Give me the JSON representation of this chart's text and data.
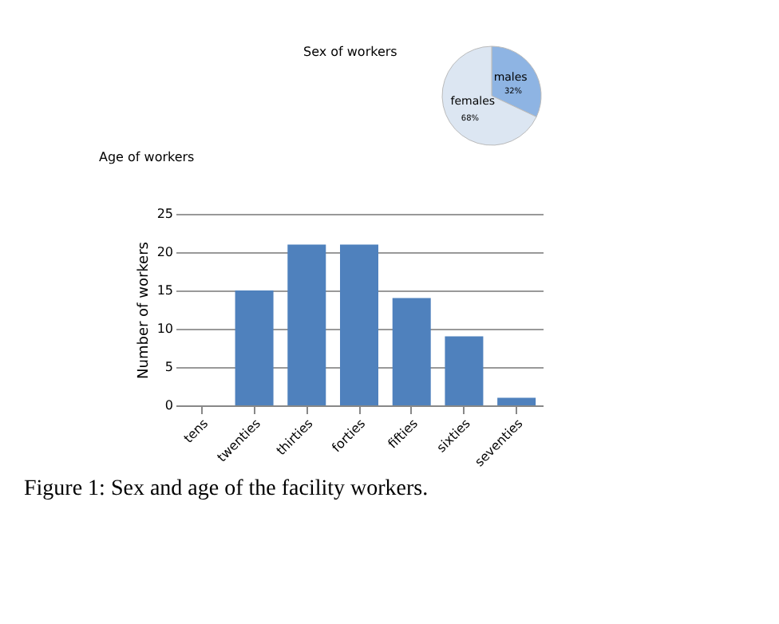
{
  "chart_data": [
    {
      "type": "pie",
      "title": "Sex of workers",
      "categories": [
        "males",
        "females"
      ],
      "values": [
        32,
        68
      ],
      "colors": [
        "#8eb4e3",
        "#dce6f2"
      ],
      "value_labels": [
        "32%",
        "68%"
      ]
    },
    {
      "type": "bar",
      "title": "Age of workers",
      "ylabel": "Number of workers",
      "categories": [
        "tens",
        "twenties",
        "thirties",
        "forties",
        "fifties",
        "sixties",
        "seventies"
      ],
      "values": [
        0,
        15,
        21,
        21,
        14,
        9,
        1
      ],
      "color": "#4f81bd",
      "ylim": [
        0,
        25
      ],
      "yticks": [
        0,
        5,
        10,
        15,
        20,
        25
      ],
      "grid": "y",
      "annotations": [
        "Figure 1: Sex and age of the facility workers."
      ]
    }
  ]
}
